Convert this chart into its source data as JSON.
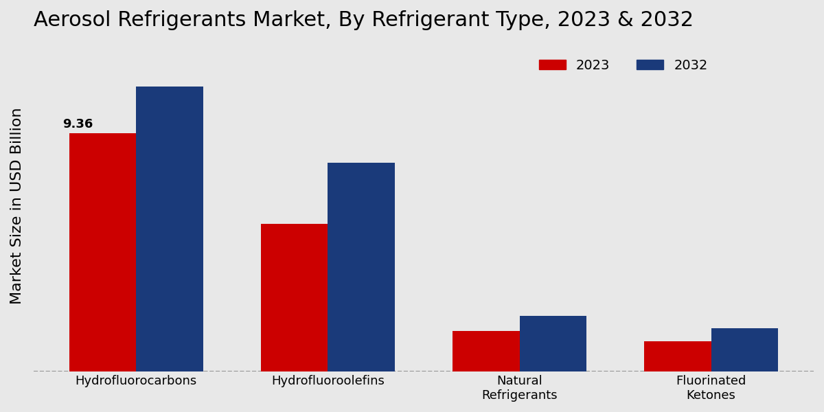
{
  "title": "Aerosol Refrigerants Market, By Refrigerant Type, 2023 & 2032",
  "ylabel": "Market Size in USD Billion",
  "categories": [
    "Hydrofluorocarbons",
    "Hydrofluoroolefins",
    "Natural\nRefrigerants",
    "Fluorinated\nKetones"
  ],
  "values_2023": [
    9.36,
    5.8,
    1.6,
    1.2
  ],
  "values_2032": [
    11.2,
    8.2,
    2.2,
    1.7
  ],
  "color_2023": "#cc0000",
  "color_2032": "#1a3a7a",
  "annotation_text": "9.36",
  "annotation_category": 0,
  "background_color": "#e8e8e8",
  "legend_labels": [
    "2023",
    "2032"
  ],
  "bar_width": 0.35,
  "ylim": [
    0,
    13
  ],
  "title_fontsize": 22,
  "axis_label_fontsize": 16,
  "tick_fontsize": 13,
  "legend_fontsize": 14
}
